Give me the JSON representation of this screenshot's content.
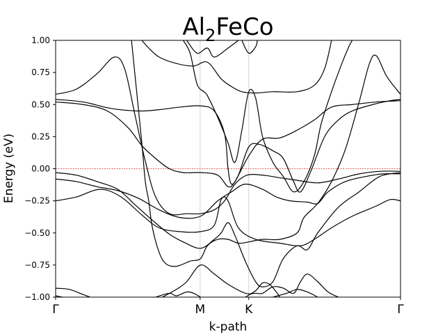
{
  "chart_data": {
    "type": "line",
    "title": "Al2FeCo",
    "title_main": "Al",
    "title_sub": "2",
    "title_rest": "FeCo",
    "xlabel": "k-path",
    "ylabel": "Energy (eV)",
    "ylim": [
      -1.0,
      1.0
    ],
    "xlim": [
      0,
      1
    ],
    "yticks": [
      -1.0,
      -0.75,
      -0.5,
      -0.25,
      0.0,
      0.25,
      0.5,
      0.75,
      1.0
    ],
    "ytick_labels": [
      "−1.00",
      "−0.75",
      "−0.50",
      "−0.25",
      "0.00",
      "0.25",
      "0.50",
      "0.75",
      "1.00"
    ],
    "kpoints": [
      {
        "label": "Γ",
        "x": 0.0
      },
      {
        "label": "M",
        "x": 0.419
      },
      {
        "label": "K",
        "x": 0.56
      },
      {
        "label": "Γ",
        "x": 1.0
      }
    ],
    "fermi_level": 0.0,
    "fermi_color": "#d62728",
    "band_color": "#000000",
    "vline_color": "#c8c8c8",
    "series": [
      {
        "values": [
          [
            0.0,
            0.58
          ],
          [
            0.06,
            0.62
          ],
          [
            0.12,
            0.74
          ],
          [
            0.17,
            0.87
          ],
          [
            0.2,
            0.78
          ],
          [
            0.23,
            0.42
          ],
          [
            0.26,
            0.06
          ],
          [
            0.29,
            -0.22
          ],
          [
            0.33,
            -0.35
          ],
          [
            0.38,
            -0.35
          ],
          [
            0.42,
            -0.35
          ],
          [
            0.46,
            -0.32
          ],
          [
            0.49,
            -0.25
          ],
          [
            0.52,
            -0.12
          ],
          [
            0.555,
            -0.05
          ],
          [
            0.6,
            -0.05
          ],
          [
            0.65,
            -0.07
          ],
          [
            0.7,
            -0.09
          ],
          [
            0.76,
            -0.11
          ],
          [
            0.82,
            -0.08
          ],
          [
            0.88,
            -0.04
          ],
          [
            0.94,
            -0.02
          ],
          [
            1.0,
            -0.02
          ]
        ]
      },
      {
        "values": [
          [
            0.0,
            0.54
          ],
          [
            0.08,
            0.52
          ],
          [
            0.16,
            0.47
          ],
          [
            0.24,
            0.45
          ],
          [
            0.3,
            0.46
          ],
          [
            0.36,
            0.48
          ],
          [
            0.42,
            0.49
          ],
          [
            0.46,
            0.45
          ],
          [
            0.49,
            0.27
          ],
          [
            0.5,
            0.0
          ],
          [
            0.51,
            -0.12
          ],
          [
            0.53,
            -0.05
          ],
          [
            0.56,
            0.17
          ],
          [
            0.59,
            0.19
          ],
          [
            0.63,
            0.14
          ],
          [
            0.66,
            0.08
          ],
          [
            0.69,
            -0.1
          ],
          [
            0.71,
            -0.18
          ],
          [
            0.74,
            -0.02
          ],
          [
            0.78,
            0.25
          ],
          [
            0.82,
            0.38
          ],
          [
            0.86,
            0.45
          ],
          [
            0.92,
            0.5
          ],
          [
            0.97,
            0.53
          ],
          [
            1.0,
            0.54
          ]
        ]
      },
      {
        "values": [
          [
            0.0,
            0.52
          ],
          [
            0.08,
            0.5
          ],
          [
            0.15,
            0.45
          ],
          [
            0.21,
            0.32
          ],
          [
            0.25,
            0.18
          ],
          [
            0.29,
            0.08
          ],
          [
            0.33,
            0.0
          ],
          [
            0.37,
            -0.03
          ],
          [
            0.42,
            -0.03
          ],
          [
            0.47,
            -0.05
          ],
          [
            0.5,
            -0.14
          ],
          [
            0.52,
            -0.1
          ],
          [
            0.56,
            0.1
          ],
          [
            0.6,
            0.23
          ],
          [
            0.65,
            0.24
          ],
          [
            0.7,
            0.3
          ],
          [
            0.75,
            0.38
          ],
          [
            0.8,
            0.48
          ],
          [
            0.86,
            0.5
          ],
          [
            0.93,
            0.52
          ],
          [
            1.0,
            0.53
          ]
        ]
      },
      {
        "values": [
          [
            0.0,
            -0.25
          ],
          [
            0.06,
            -0.22
          ],
          [
            0.13,
            -0.16
          ],
          [
            0.19,
            -0.22
          ],
          [
            0.25,
            -0.36
          ],
          [
            0.3,
            -0.46
          ],
          [
            0.36,
            -0.49
          ],
          [
            0.42,
            -0.49
          ],
          [
            0.46,
            -0.44
          ],
          [
            0.48,
            -0.24
          ],
          [
            0.5,
            -0.25
          ],
          [
            0.53,
            -0.46
          ],
          [
            0.58,
            -0.55
          ],
          [
            0.65,
            -0.58
          ],
          [
            0.71,
            -0.6
          ],
          [
            0.75,
            -0.55
          ],
          [
            0.8,
            -0.46
          ],
          [
            0.86,
            -0.37
          ],
          [
            0.93,
            -0.29
          ],
          [
            0.97,
            -0.24
          ],
          [
            1.0,
            -0.25
          ]
        ]
      },
      {
        "values": [
          [
            0.0,
            -0.03
          ],
          [
            0.06,
            -0.05
          ],
          [
            0.12,
            -0.1
          ],
          [
            0.18,
            -0.16
          ],
          [
            0.23,
            -0.28
          ],
          [
            0.28,
            -0.4
          ],
          [
            0.33,
            -0.51
          ],
          [
            0.37,
            -0.57
          ],
          [
            0.42,
            -0.62
          ],
          [
            0.46,
            -0.55
          ],
          [
            0.48,
            -0.5
          ],
          [
            0.5,
            -0.42
          ],
          [
            0.52,
            -0.52
          ],
          [
            0.55,
            -0.72
          ],
          [
            0.58,
            -0.88
          ],
          [
            0.6,
            -0.92
          ],
          [
            0.63,
            -0.88
          ],
          [
            0.66,
            -0.7
          ],
          [
            0.7,
            -0.6
          ],
          [
            0.73,
            -0.63
          ],
          [
            0.76,
            -0.5
          ],
          [
            0.82,
            -0.3
          ],
          [
            0.88,
            -0.18
          ],
          [
            0.94,
            -0.06
          ],
          [
            1.0,
            -0.03
          ]
        ]
      },
      {
        "values": [
          [
            0.0,
            -0.08
          ],
          [
            0.06,
            -0.1
          ],
          [
            0.12,
            -0.14
          ],
          [
            0.18,
            -0.17
          ],
          [
            0.24,
            -0.23
          ],
          [
            0.3,
            -0.32
          ],
          [
            0.36,
            -0.38
          ],
          [
            0.42,
            -0.37
          ],
          [
            0.47,
            -0.25
          ],
          [
            0.51,
            -0.18
          ],
          [
            0.55,
            -0.12
          ],
          [
            0.6,
            -0.16
          ],
          [
            0.64,
            -0.22
          ],
          [
            0.68,
            -0.25
          ],
          [
            0.73,
            -0.26
          ],
          [
            0.76,
            -0.27
          ],
          [
            0.79,
            -0.18
          ],
          [
            0.84,
            -0.1
          ],
          [
            0.9,
            -0.06
          ],
          [
            0.95,
            -0.04
          ],
          [
            1.0,
            -0.04
          ]
        ]
      },
      {
        "values": [
          [
            0.22,
            1.0
          ],
          [
            0.235,
            0.6
          ],
          [
            0.25,
            0.2
          ],
          [
            0.26,
            -0.1
          ],
          [
            0.27,
            -0.25
          ],
          [
            0.28,
            -0.45
          ],
          [
            0.3,
            -0.65
          ],
          [
            0.32,
            -0.74
          ],
          [
            0.35,
            -0.76
          ],
          [
            0.39,
            -0.72
          ],
          [
            0.42,
            -0.7
          ],
          [
            0.44,
            -0.6
          ],
          [
            0.47,
            -0.55
          ],
          [
            0.5,
            -0.55
          ],
          [
            0.53,
            -0.58
          ],
          [
            0.56,
            -0.57
          ],
          [
            0.6,
            -0.55
          ],
          [
            0.65,
            -0.55
          ],
          [
            0.7,
            -0.5
          ],
          [
            0.72,
            -0.38
          ],
          [
            0.76,
            -0.27
          ],
          [
            0.8,
            -0.1
          ],
          [
            0.84,
            0.15
          ],
          [
            0.88,
            0.52
          ],
          [
            0.91,
            0.82
          ],
          [
            0.93,
            0.88
          ],
          [
            0.96,
            0.72
          ],
          [
            1.0,
            0.58
          ]
        ]
      },
      {
        "values": [
          [
            0.25,
            1.0
          ],
          [
            0.27,
            0.94
          ],
          [
            0.3,
            0.87
          ],
          [
            0.35,
            0.82
          ],
          [
            0.4,
            0.8
          ],
          [
            0.44,
            0.83
          ],
          [
            0.48,
            0.7
          ],
          [
            0.51,
            0.64
          ],
          [
            0.54,
            0.6
          ],
          [
            0.58,
            0.59
          ],
          [
            0.63,
            0.6
          ],
          [
            0.7,
            0.6
          ],
          [
            0.75,
            0.65
          ],
          [
            0.78,
            0.78
          ],
          [
            0.8,
            1.0
          ]
        ]
      },
      {
        "values": [
          [
            0.37,
            1.0
          ],
          [
            0.39,
            0.9
          ],
          [
            0.41,
            0.66
          ],
          [
            0.43,
            0.6
          ],
          [
            0.44,
            0.57
          ],
          [
            0.47,
            0.4
          ],
          [
            0.5,
            0.2
          ],
          [
            0.52,
            0.05
          ],
          [
            0.54,
            0.3
          ],
          [
            0.56,
            0.6
          ],
          [
            0.58,
            0.55
          ],
          [
            0.6,
            0.25
          ],
          [
            0.63,
            0.05
          ],
          [
            0.66,
            -0.06
          ],
          [
            0.69,
            -0.18
          ],
          [
            0.72,
            -0.1
          ],
          [
            0.75,
            0.1
          ],
          [
            0.77,
            0.35
          ],
          [
            0.8,
            0.6
          ],
          [
            0.83,
            0.82
          ],
          [
            0.85,
            0.95
          ],
          [
            0.86,
            1.0
          ]
        ]
      },
      {
        "values": [
          [
            0.38,
            1.0
          ],
          [
            0.41,
            0.9
          ],
          [
            0.44,
            0.94
          ],
          [
            0.46,
            0.87
          ],
          [
            0.5,
            0.94
          ],
          [
            0.53,
            1.0
          ]
        ]
      },
      {
        "values": [
          [
            0.54,
            1.0
          ],
          [
            0.56,
            0.9
          ],
          [
            0.58,
            0.95
          ],
          [
            0.585,
            1.0
          ]
        ]
      },
      {
        "values": [
          [
            0.0,
            -0.93
          ],
          [
            0.04,
            -0.94
          ],
          [
            0.08,
            -0.98
          ],
          [
            0.1,
            -1.0
          ]
        ]
      },
      {
        "values": [
          [
            0.0,
            -0.99
          ],
          [
            0.02,
            -1.0
          ]
        ]
      },
      {
        "values": [
          [
            0.31,
            -1.0
          ],
          [
            0.35,
            -0.94
          ],
          [
            0.38,
            -0.88
          ],
          [
            0.42,
            -0.75
          ],
          [
            0.46,
            -0.82
          ],
          [
            0.5,
            -0.9
          ],
          [
            0.55,
            -0.97
          ],
          [
            0.58,
            -0.97
          ],
          [
            0.6,
            -0.97
          ],
          [
            0.63,
            -0.92
          ],
          [
            0.66,
            -0.93
          ],
          [
            0.69,
            -0.97
          ],
          [
            0.71,
            -0.88
          ],
          [
            0.73,
            -0.82
          ],
          [
            0.76,
            -0.88
          ],
          [
            0.79,
            -0.96
          ],
          [
            0.82,
            -1.0
          ]
        ]
      },
      {
        "values": [
          [
            0.29,
            -1.0
          ],
          [
            0.33,
            -0.97
          ],
          [
            0.35,
            -0.99
          ],
          [
            0.38,
            -0.96
          ],
          [
            0.4,
            -0.97
          ],
          [
            0.42,
            -1.0
          ]
        ]
      },
      {
        "values": [
          [
            0.63,
            -1.0
          ],
          [
            0.67,
            -0.97
          ],
          [
            0.7,
            -0.94
          ],
          [
            0.73,
            -0.96
          ],
          [
            0.76,
            -1.0
          ]
        ]
      },
      {
        "values": [
          [
            0.55,
            -1.0
          ],
          [
            0.58,
            -0.95
          ],
          [
            0.6,
            -0.89
          ],
          [
            0.62,
            -0.9
          ],
          [
            0.64,
            -0.96
          ],
          [
            0.65,
            -1.0
          ]
        ]
      }
    ]
  }
}
